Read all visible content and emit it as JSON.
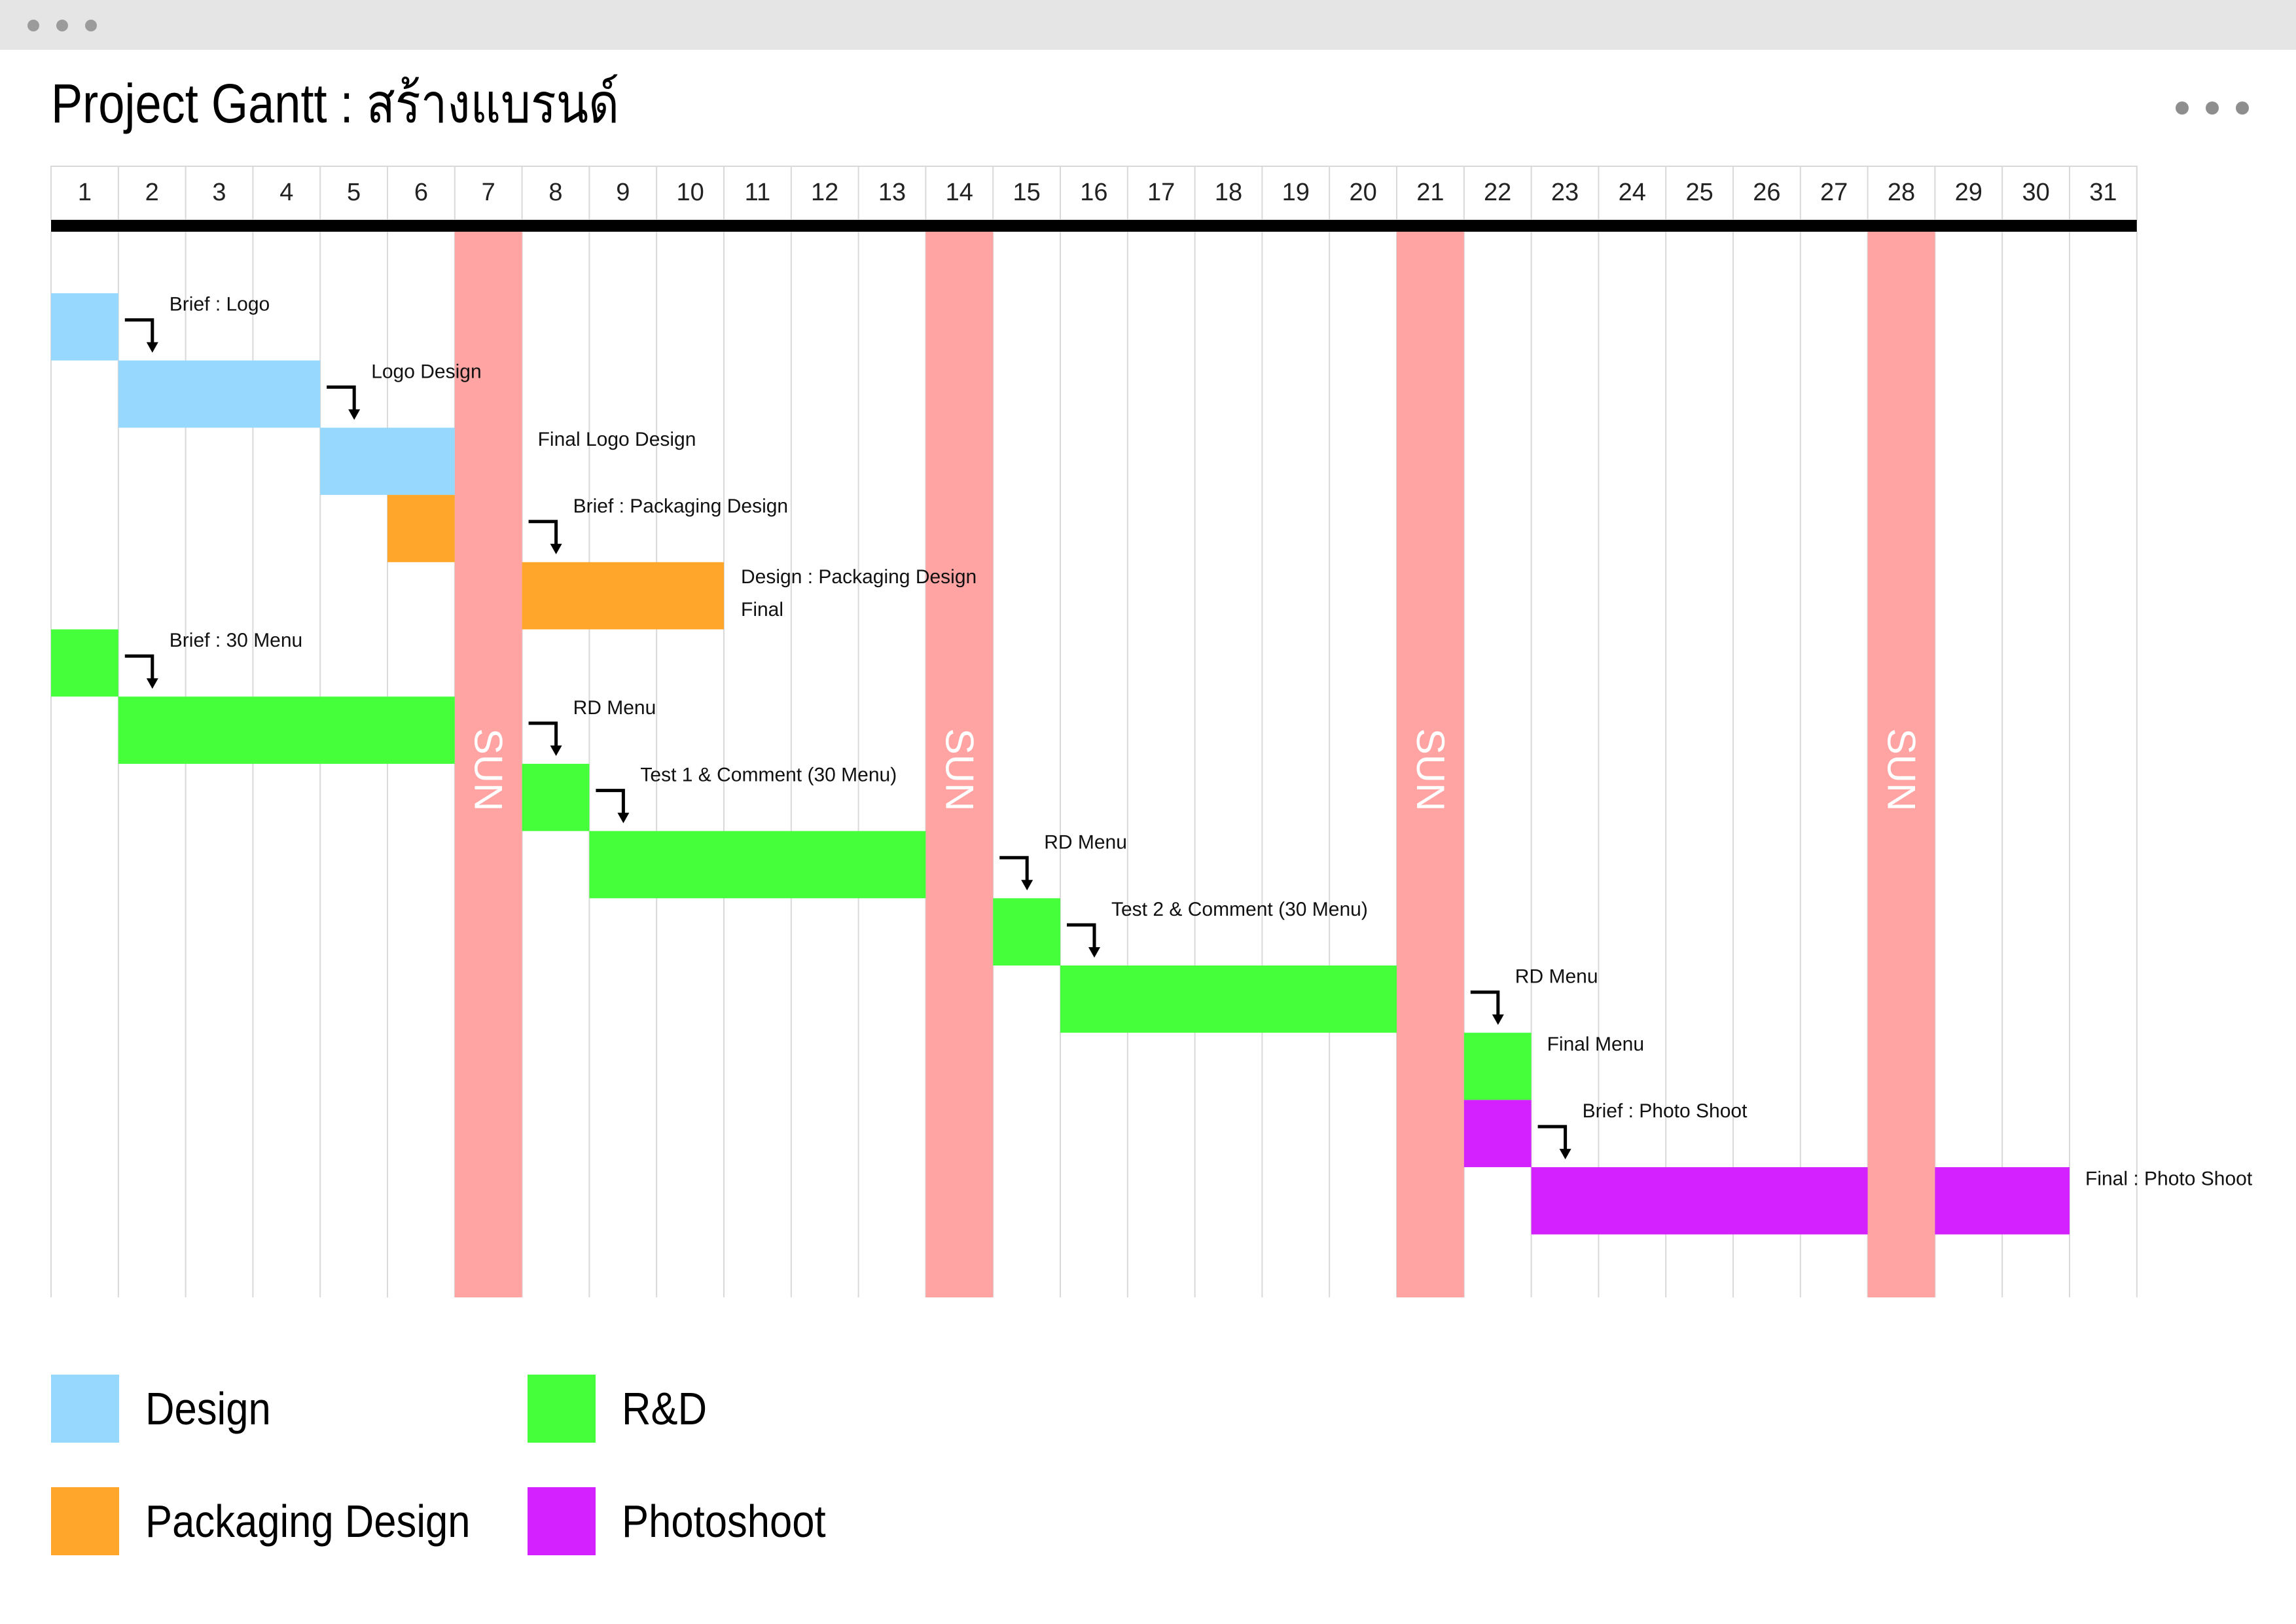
{
  "window": {
    "controls": [
      "window-dot-1",
      "window-dot-2",
      "window-dot-3"
    ]
  },
  "header": {
    "title": "Project Gantt : สร้างแบรนด์",
    "more_icon": "more-horizontal-icon"
  },
  "colors": {
    "design": "#97d8ff",
    "packaging": "#ffa62b",
    "rnd": "#45ff3a",
    "photoshoot": "#d421ff",
    "sunday": "#ffa3a3",
    "grid": "#d9d9d9",
    "header_rule": "#000000"
  },
  "chart_data": {
    "type": "gantt",
    "title": "Project Gantt : สร้างแบรนด์",
    "days": [
      1,
      2,
      3,
      4,
      5,
      6,
      7,
      8,
      9,
      10,
      11,
      12,
      13,
      14,
      15,
      16,
      17,
      18,
      19,
      20,
      21,
      22,
      23,
      24,
      25,
      26,
      27,
      28,
      29,
      30,
      31
    ],
    "weekend": {
      "label": "SUN",
      "days": [
        7,
        14,
        21,
        28
      ]
    },
    "legend": [
      {
        "key": "design",
        "label": "Design"
      },
      {
        "key": "packaging",
        "label": "Packaging Design"
      },
      {
        "key": "rnd",
        "label": "R&D"
      },
      {
        "key": "photoshoot",
        "label": "Photoshoot"
      }
    ],
    "tasks": [
      {
        "label": "Brief : Logo",
        "category": "design",
        "start": 1,
        "end": 1,
        "arrow": true
      },
      {
        "label": "Logo Design",
        "category": "design",
        "start": 2,
        "end": 4,
        "arrow": true
      },
      {
        "label": "Final Logo Design",
        "category": "design",
        "start": 5,
        "end": 6,
        "arrow": false
      },
      {
        "label": "Brief : Packaging Design",
        "category": "packaging",
        "start": 6,
        "end": 6,
        "arrow": true
      },
      {
        "label": "Design : Packaging Design",
        "label2": "Final",
        "category": "packaging",
        "start": 8,
        "end": 10,
        "arrow": false
      },
      {
        "label": "Brief : 30 Menu",
        "category": "rnd",
        "start": 1,
        "end": 1,
        "arrow": true
      },
      {
        "label": "RD Menu",
        "category": "rnd",
        "start": 2,
        "end": 6,
        "arrow": true
      },
      {
        "label": "Test 1 & Comment (30 Menu)",
        "category": "rnd",
        "start": 8,
        "end": 8,
        "arrow": true
      },
      {
        "label": "RD Menu",
        "category": "rnd",
        "start": 9,
        "end": 13,
        "arrow": true
      },
      {
        "label": "Test 2 & Comment (30 Menu)",
        "category": "rnd",
        "start": 15,
        "end": 15,
        "arrow": true
      },
      {
        "label": "RD Menu",
        "category": "rnd",
        "start": 16,
        "end": 20,
        "arrow": true
      },
      {
        "label": "Final Menu",
        "category": "rnd",
        "start": 22,
        "end": 22,
        "arrow": false
      },
      {
        "label": "Brief : Photo Shoot",
        "category": "photoshoot",
        "start": 22,
        "end": 22,
        "arrow": true
      },
      {
        "label": "Final : Photo Shoot",
        "category": "photoshoot",
        "start": 23,
        "end": 30,
        "arrow": false
      }
    ]
  }
}
